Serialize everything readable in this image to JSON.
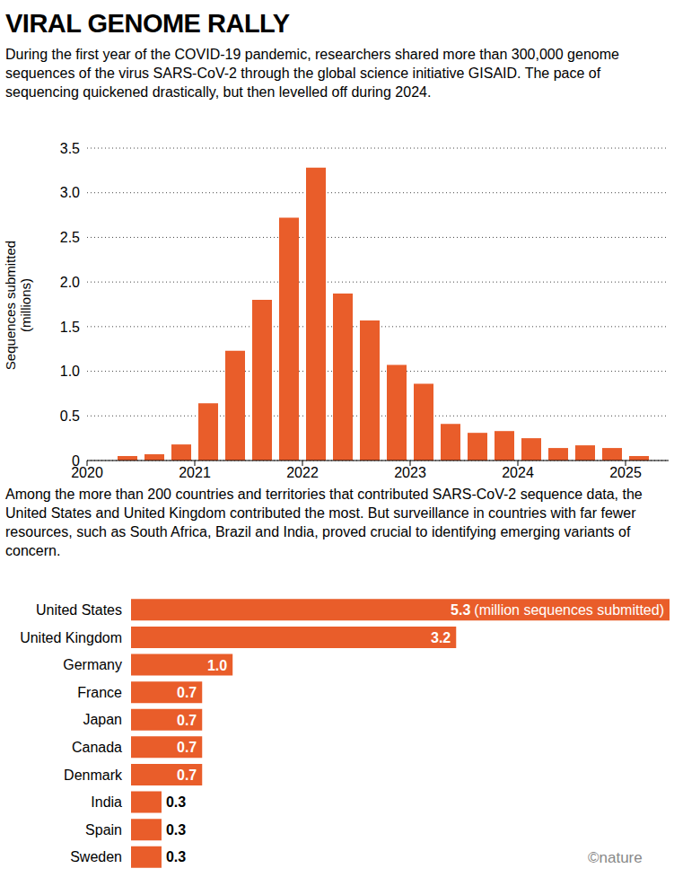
{
  "chart_data": [
    {
      "type": "bar",
      "title": "VIRAL GENOME RALLY",
      "subtitle": "During the first year of the COVID-19 pandemic, researchers shared more than 300,000 genome sequences of the virus SARS-CoV-2 through the global science initiative GISAID. The pace of sequencing quickened drastically, but then levelled off during 2024.",
      "y_label": "Sequences submitted (millions)",
      "x": [
        2020.375,
        2020.625,
        2020.875,
        2021.125,
        2021.375,
        2021.625,
        2021.875,
        2022.125,
        2022.375,
        2022.625,
        2022.875,
        2023.125,
        2023.375,
        2023.625,
        2023.875,
        2024.125,
        2024.375,
        2024.625,
        2024.875,
        2025.125
      ],
      "values": [
        0.05,
        0.07,
        0.18,
        0.64,
        1.23,
        1.8,
        2.72,
        3.28,
        1.87,
        1.57,
        1.07,
        0.86,
        0.41,
        0.31,
        0.33,
        0.25,
        0.14,
        0.17,
        0.14,
        0.05
      ],
      "color": "#e95d2a",
      "xlim": [
        2020,
        2025.4
      ],
      "xticks": [
        2020,
        2021,
        2022,
        2023,
        2024,
        2025
      ],
      "ylim": [
        0,
        3.5
      ],
      "yticks": [
        0,
        0.5,
        {
          "value": 1,
          "label": "1.0"
        },
        1.5,
        {
          "value": 2,
          "label": "2.0"
        },
        2.5,
        {
          "value": 3,
          "label": "3.0"
        },
        3.5
      ],
      "grid": true
    },
    {
      "type": "bar",
      "orientation": "horizontal",
      "subtitle": "Among the more than 200 countries and territories that contributed SARS-CoV-2 sequence data, the United States and United Kingdom contributed the most. But surveillance in countries with far fewer resources, such as South Africa, Brazil and India, proved crucial to identifying emerging variants of concern.",
      "categories": [
        "United States",
        "United Kingdom",
        "Germany",
        "France",
        "Japan",
        "Canada",
        "Denmark",
        "India",
        "Spain",
        "Sweden"
      ],
      "values": [
        5.3,
        3.2,
        1.0,
        0.7,
        0.7,
        0.7,
        0.7,
        0.3,
        0.3,
        0.3
      ],
      "value_labels": [
        "5.3",
        "3.2",
        "1.0",
        "0.7",
        "0.7",
        "0.7",
        "0.7",
        "0.3",
        "0.3",
        "0.3"
      ],
      "annotation": "(million sequences submitted)",
      "color": "#e95d2a",
      "xlim": [
        0,
        5.3
      ],
      "data_labels": true,
      "tick_labels": "y",
      "credit": "©nature"
    }
  ]
}
